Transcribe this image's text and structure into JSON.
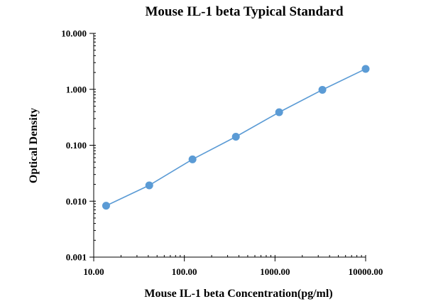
{
  "chart_data": {
    "type": "scatter",
    "title": "Mouse IL-1 beta Typical Standard",
    "xlabel": "Mouse IL-1 beta Concentration(pg/ml)",
    "ylabel": "Optical Density",
    "xscale": "log",
    "yscale": "log",
    "xlim": [
      10,
      10000
    ],
    "ylim": [
      0.001,
      10
    ],
    "x_ticks": [
      "10.00",
      "100.00",
      "1000.00",
      "10000.00"
    ],
    "y_ticks": [
      "0.001",
      "0.010",
      "0.100",
      "1.000",
      "10.000"
    ],
    "grid": false,
    "legend": "none",
    "series": [
      {
        "x": [
          13.7,
          41,
          123,
          370,
          1111,
          3333,
          10000
        ],
        "y": [
          0.0083,
          0.0192,
          0.056,
          0.142,
          0.39,
          0.98,
          2.32
        ],
        "color": "#5B9BD5",
        "trendline": true
      }
    ]
  }
}
